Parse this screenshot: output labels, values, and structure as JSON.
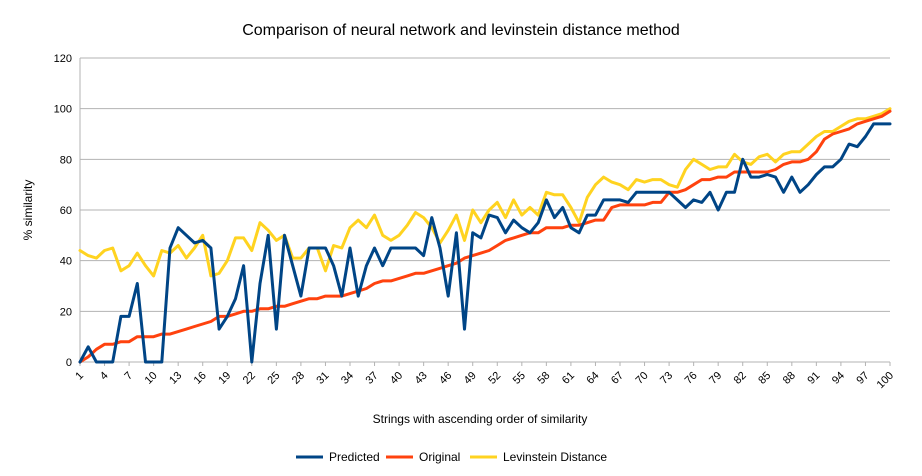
{
  "chart_data": {
    "type": "line",
    "title": "Comparison of neural network and levinstein distance method",
    "xlabel": "Strings with ascending order of similarity",
    "ylabel": "% similarity",
    "ylim": [
      0,
      120
    ],
    "yticks": [
      0,
      20,
      40,
      60,
      80,
      100,
      120
    ],
    "xticks": [
      1,
      4,
      7,
      10,
      13,
      16,
      19,
      22,
      25,
      28,
      31,
      34,
      37,
      40,
      43,
      46,
      49,
      52,
      55,
      58,
      61,
      64,
      67,
      70,
      73,
      76,
      79,
      82,
      85,
      88,
      91,
      94,
      97,
      100
    ],
    "grid": "horizontal",
    "legend_position": "bottom",
    "x": [
      1,
      2,
      3,
      4,
      5,
      6,
      7,
      8,
      9,
      10,
      11,
      12,
      13,
      14,
      15,
      16,
      17,
      18,
      19,
      20,
      21,
      22,
      23,
      24,
      25,
      26,
      27,
      28,
      29,
      30,
      31,
      32,
      33,
      34,
      35,
      36,
      37,
      38,
      39,
      40,
      41,
      42,
      43,
      44,
      45,
      46,
      47,
      48,
      49,
      50,
      51,
      52,
      53,
      54,
      55,
      56,
      57,
      58,
      59,
      60,
      61,
      62,
      63,
      64,
      65,
      66,
      67,
      68,
      69,
      70,
      71,
      72,
      73,
      74,
      75,
      76,
      77,
      78,
      79,
      80,
      81,
      82,
      83,
      84,
      85,
      86,
      87,
      88,
      89,
      90,
      91,
      92,
      93,
      94,
      95,
      96,
      97,
      98,
      99,
      100
    ],
    "series": [
      {
        "name": "Predicted",
        "color": "#004586",
        "values": [
          0,
          6,
          0,
          0,
          0,
          18,
          18,
          31,
          0,
          0,
          0,
          45,
          53,
          50,
          47,
          48,
          45,
          13,
          18,
          25,
          38,
          0,
          31,
          50,
          13,
          50,
          38,
          26,
          45,
          45,
          45,
          38,
          26,
          45,
          26,
          38,
          45,
          38,
          45,
          45,
          45,
          45,
          42,
          57,
          45,
          26,
          51,
          13,
          51,
          49,
          58,
          57,
          51,
          56,
          53,
          51,
          55,
          64,
          57,
          61,
          53,
          51,
          58,
          58,
          64,
          64,
          64,
          63,
          67,
          67,
          67,
          67,
          67,
          64,
          61,
          64,
          63,
          67,
          60,
          67,
          67,
          80,
          73,
          73,
          74,
          73,
          67,
          73,
          67,
          70,
          74,
          77,
          77,
          80,
          86,
          85,
          89,
          94,
          94,
          94
        ]
      },
      {
        "name": "Original",
        "color": "#ff420e",
        "values": [
          0,
          2,
          5,
          7,
          7,
          8,
          8,
          10,
          10,
          10,
          11,
          11,
          12,
          13,
          14,
          15,
          16,
          18,
          18,
          19,
          20,
          20,
          21,
          21,
          22,
          22,
          23,
          24,
          25,
          25,
          26,
          26,
          26,
          27,
          28,
          29,
          31,
          32,
          32,
          33,
          34,
          35,
          35,
          36,
          37,
          38,
          39,
          41,
          42,
          43,
          44,
          46,
          48,
          49,
          50,
          51,
          51,
          53,
          53,
          53,
          54,
          54,
          55,
          56,
          56,
          61,
          62,
          62,
          62,
          62,
          63,
          63,
          67,
          67,
          68,
          70,
          72,
          72,
          73,
          73,
          75,
          75,
          75,
          75,
          75,
          76,
          78,
          79,
          79,
          80,
          83,
          88,
          90,
          91,
          92,
          94,
          95,
          96,
          97,
          99
        ]
      },
      {
        "name": "Levinstein Distance",
        "color": "#ffd320",
        "values": [
          44,
          42,
          41,
          44,
          45,
          36,
          38,
          43,
          38,
          34,
          44,
          43,
          46,
          41,
          45,
          50,
          34,
          35,
          40,
          49,
          49,
          44,
          55,
          52,
          48,
          50,
          41,
          41,
          45,
          45,
          36,
          46,
          45,
          53,
          56,
          53,
          58,
          50,
          48,
          50,
          54,
          59,
          57,
          53,
          47,
          52,
          58,
          48,
          60,
          55,
          60,
          63,
          57,
          64,
          58,
          61,
          58,
          67,
          66,
          66,
          61,
          55,
          65,
          70,
          73,
          71,
          70,
          68,
          72,
          71,
          72,
          72,
          70,
          69,
          76,
          80,
          78,
          76,
          77,
          77,
          82,
          79,
          78,
          81,
          82,
          79,
          82,
          83,
          83,
          86,
          89,
          91,
          91,
          93,
          95,
          96,
          96,
          97,
          98,
          100
        ]
      }
    ]
  }
}
